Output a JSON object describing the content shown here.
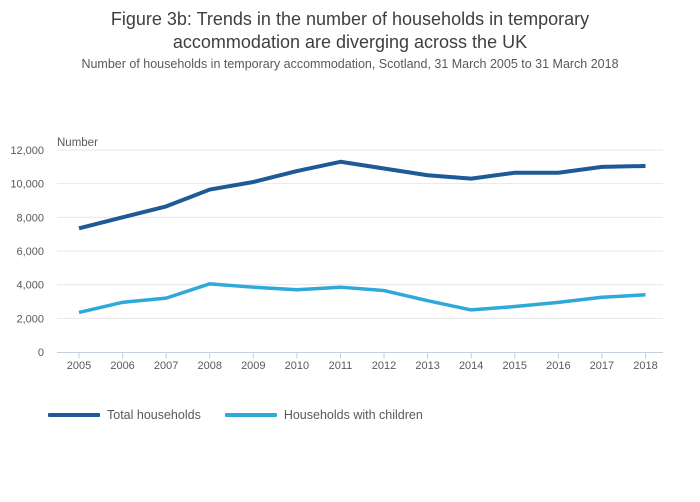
{
  "figure": {
    "title": "Figure 3b: Trends in the number of households in temporary accommodation are diverging across the UK",
    "subtitle": "Number of households in temporary accommodation, Scotland, 31 March 2005 to 31 March 2018"
  },
  "chart_data": {
    "type": "line",
    "axis_unit_label": "Number",
    "x": [
      2005,
      2006,
      2007,
      2008,
      2009,
      2010,
      2011,
      2012,
      2013,
      2014,
      2015,
      2016,
      2017,
      2018
    ],
    "series": [
      {
        "name": "Total households",
        "color": "#1e5a96",
        "stroke_width": 4,
        "values": [
          7350,
          8000,
          8650,
          9650,
          10100,
          10750,
          11300,
          10900,
          10500,
          10300,
          10650,
          10650,
          11000,
          11050
        ]
      },
      {
        "name": "Households with children",
        "color": "#2fa9da",
        "stroke_width": 3.5,
        "values": [
          2350,
          2950,
          3200,
          4050,
          3850,
          3700,
          3850,
          3650,
          3050,
          2500,
          2700,
          2950,
          3250,
          3400
        ]
      }
    ],
    "ylim": [
      0,
      12000
    ],
    "ytick_interval": 2000,
    "ytick_labels": [
      "0",
      "2,000",
      "4,000",
      "6,000",
      "8,000",
      "10,000",
      "12,000"
    ],
    "grid": true,
    "legend_position": "bottom-left"
  },
  "style": {
    "gridline_color": "#e7e7e7",
    "axis_color": "#c3cede",
    "tick_label_color": "#595959",
    "title_color": "#3f3f3f",
    "subtitle_color": "#595959"
  }
}
